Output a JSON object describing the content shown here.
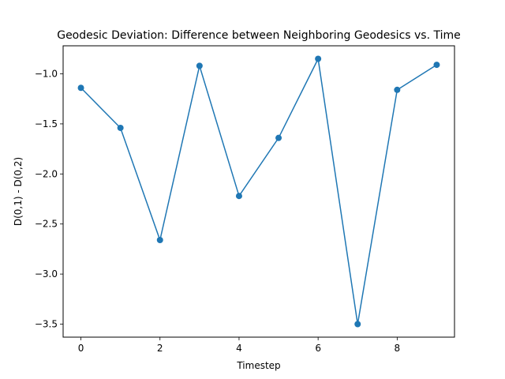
{
  "chart_data": {
    "type": "line",
    "title": "Geodesic Deviation: Difference between Neighboring Geodesics vs. Time",
    "xlabel": "Timestep",
    "ylabel": "D(0,1) - D(0,2)",
    "x": [
      0,
      1,
      2,
      3,
      4,
      5,
      6,
      7,
      8,
      9
    ],
    "series": [
      {
        "values": [
          -1.14,
          -1.54,
          -2.66,
          -0.92,
          -2.22,
          -1.64,
          -0.85,
          -3.5,
          -1.16,
          -0.91
        ],
        "color": "#1f77b4",
        "marker": "circle"
      }
    ],
    "xticks": [
      0,
      2,
      4,
      6,
      8
    ],
    "yticks": [
      -3.5,
      -3.0,
      -2.5,
      -2.0,
      -1.5,
      -1.0
    ],
    "xtick_labels": [
      "0",
      "2",
      "4",
      "6",
      "8"
    ],
    "ytick_labels": [
      "−3.5",
      "−3.0",
      "−2.5",
      "−2.0",
      "−1.5",
      "−1.0"
    ],
    "xlim": [
      -0.45,
      9.45
    ],
    "ylim": [
      -3.63,
      -0.72
    ],
    "grid": false,
    "legend": false
  }
}
